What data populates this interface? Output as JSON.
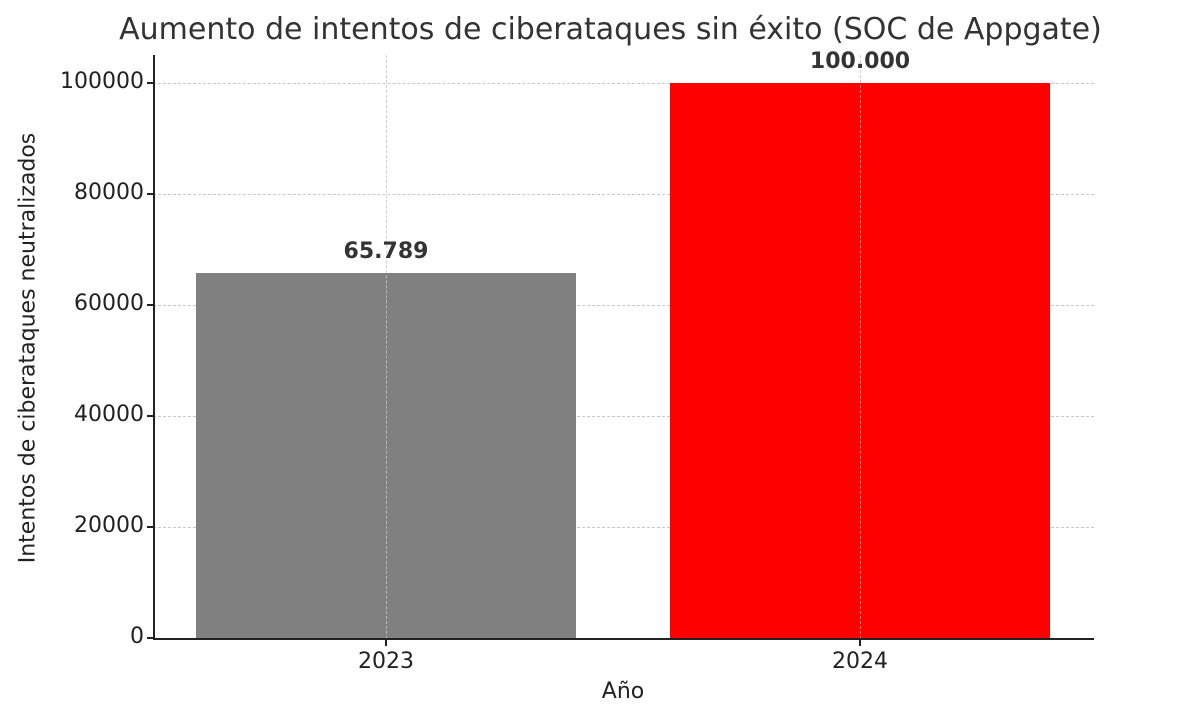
{
  "chart_data": {
    "type": "bar",
    "title": "Aumento de intentos de ciberataques sin éxito (SOC de Appgate)",
    "xlabel": "Año",
    "ylabel": "Intentos de ciberataques neutralizados",
    "categories": [
      "2023",
      "2024"
    ],
    "values": [
      65789,
      100000
    ],
    "data_labels": [
      "65.789",
      "100.000"
    ],
    "colors": [
      "#808080",
      "#ff0000"
    ],
    "ylim": [
      0,
      105000
    ],
    "yticks": [
      0,
      20000,
      40000,
      60000,
      80000,
      100000
    ],
    "ytick_labels": [
      "0",
      "20000",
      "40000",
      "60000",
      "80000",
      "100000"
    ],
    "grid": true,
    "legend": null
  }
}
